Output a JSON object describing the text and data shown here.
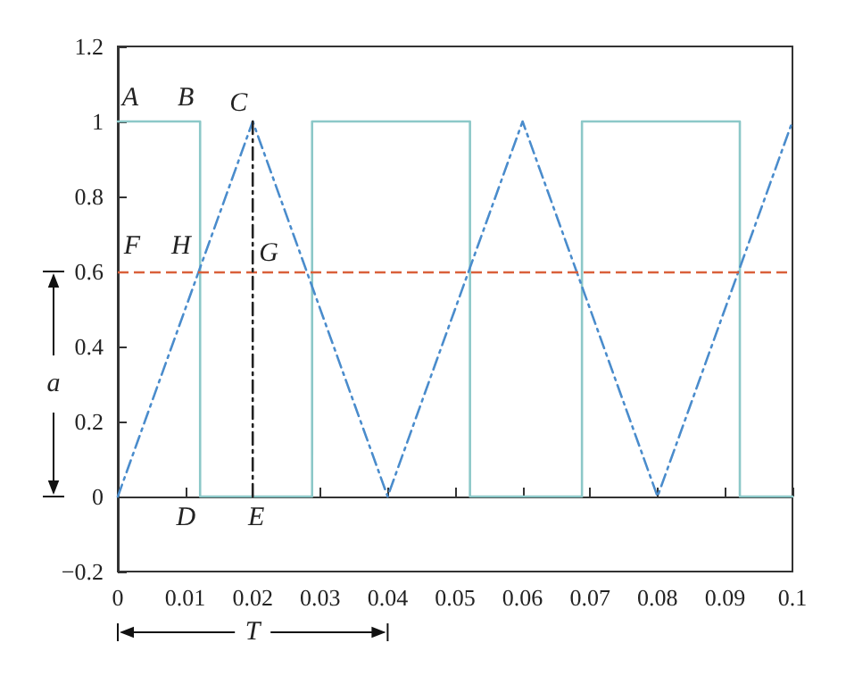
{
  "chart_data": {
    "type": "line",
    "xlim": [
      0,
      0.1
    ],
    "xticks": [
      0,
      0.01,
      0.02,
      0.03,
      0.04,
      0.05,
      0.06,
      0.07,
      0.08,
      0.09,
      0.1
    ],
    "ylim": [
      -0.2,
      1.2
    ],
    "yticks": [
      -0.2,
      0,
      0.2,
      0.4,
      0.6,
      0.8,
      1,
      1.2
    ],
    "grid": false,
    "marker": "none",
    "series": [
      {
        "color": "#8cc8c8",
        "line_style": "solid",
        "x": [
          0,
          0.0122,
          0.0122,
          0.0288,
          0.0288,
          0.0522,
          0.0522,
          0.0688,
          0.0688,
          0.0922,
          0.0922,
          0.1
        ],
        "values": [
          1,
          1,
          0,
          0,
          1,
          1,
          0,
          0,
          1,
          1,
          0,
          0
        ]
      },
      {
        "color": "#4a8ccc",
        "line_style": "dashed",
        "x": [
          0,
          0.02,
          0.04,
          0.06,
          0.08,
          0.1
        ],
        "values": [
          0,
          1,
          0,
          1,
          0,
          1
        ]
      },
      {
        "color": "#222222",
        "line_style": "dashed",
        "x": [
          0.02,
          0.02
        ],
        "values": [
          0,
          1
        ]
      }
    ],
    "ref_lines": [
      {
        "axis": "y",
        "value": 0.6,
        "color": "#d9603a",
        "line_style": "dashed"
      }
    ],
    "annotations": [
      {
        "text": "A",
        "x": 0,
        "y": 1
      },
      {
        "text": "B",
        "x": 0.0122,
        "y": 1
      },
      {
        "text": "C",
        "x": 0.02,
        "y": 1
      },
      {
        "text": "F",
        "x": 0,
        "y": 0.6
      },
      {
        "text": "H",
        "x": 0.012,
        "y": 0.6
      },
      {
        "text": "G",
        "x": 0.02,
        "y": 0.6
      },
      {
        "text": "D",
        "x": 0.0122,
        "y": 0
      },
      {
        "text": "E",
        "x": 0.02,
        "y": 0
      },
      "a",
      "T"
    ]
  }
}
